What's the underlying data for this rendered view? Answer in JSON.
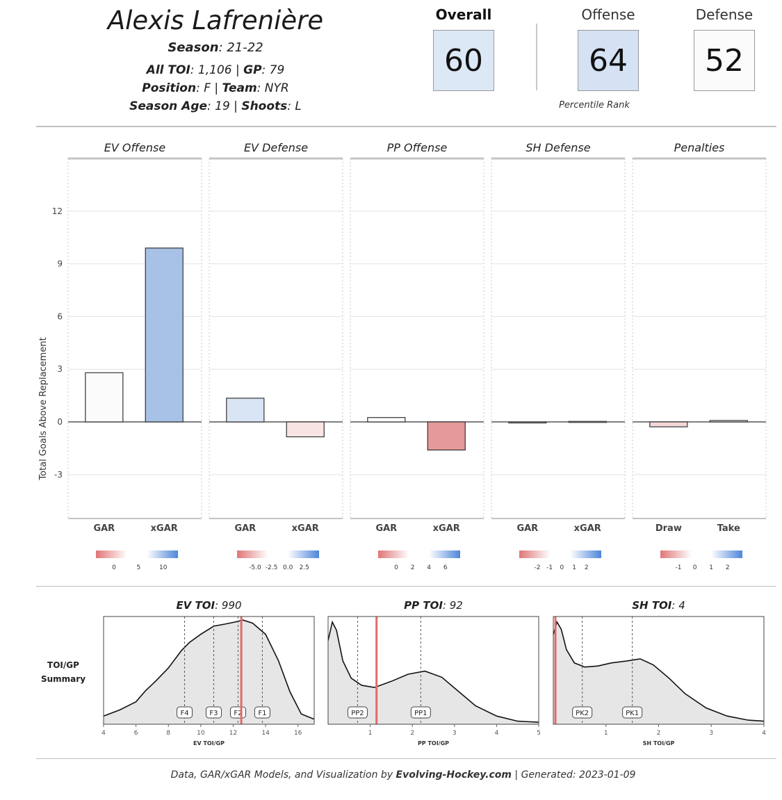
{
  "header": {
    "player_name": "Alexis Lafrenière",
    "season_label": "Season",
    "season_value": ": 21-22",
    "toi_label": "All TOI",
    "toi_value": ": 1,106 | ",
    "gp_label": "GP",
    "gp_value": ": 79",
    "position_label": "Position",
    "position_value": ": F | ",
    "team_label": "Team",
    "team_value": ": NYR",
    "age_label": "Season Age",
    "age_value": ": 19 | ",
    "shoots_label": "Shoots",
    "shoots_value": ": L"
  },
  "ranks": {
    "overall_label": "Overall",
    "overall_value": "60",
    "offense_label": "Offense",
    "offense_value": "64",
    "defense_label": "Defense",
    "defense_value": "52",
    "percentile_caption": "Percentile Rank",
    "colors": {
      "overall": "#dde8f6",
      "offense": "#d4e2f3",
      "defense": "#fbfbfb"
    }
  },
  "chart_data": [
    {
      "type": "bar",
      "ylabel": "Total Goals Above Replacement",
      "yticks": [
        12,
        9,
        6,
        3,
        0,
        -3
      ],
      "ylim": [
        -5.5,
        15
      ],
      "panels": [
        {
          "title": "EV Offense",
          "categories": [
            "GAR",
            "xGAR"
          ],
          "values": [
            2.8,
            9.9
          ],
          "colors": [
            "#fbfbfb",
            "#a8c1e6"
          ],
          "legend_ticks": [
            "0",
            "5",
            "10"
          ]
        },
        {
          "title": "EV Defense",
          "categories": [
            "GAR",
            "xGAR"
          ],
          "values": [
            1.35,
            -0.85
          ],
          "colors": [
            "#d9e4f5",
            "#f9e4e4"
          ],
          "legend_ticks": [
            "-5.0",
            "-2.5",
            "0.0",
            "2.5"
          ]
        },
        {
          "title": "PP Offense",
          "categories": [
            "GAR",
            "xGAR"
          ],
          "values": [
            0.25,
            -1.6
          ],
          "colors": [
            "#fdfdfd",
            "#e49a9a"
          ],
          "legend_ticks": [
            "0",
            "2",
            "4",
            "6"
          ]
        },
        {
          "title": "SH Defense",
          "categories": [
            "GAR",
            "xGAR"
          ],
          "values": [
            -0.03,
            0.03
          ],
          "colors": [
            "#f3f3f3",
            "#f3f3f3"
          ],
          "legend_ticks": [
            "-2",
            "-1",
            "0",
            "1",
            "2"
          ]
        },
        {
          "title": "Penalties",
          "categories": [
            "Draw",
            "Take"
          ],
          "values": [
            -0.28,
            0.08
          ],
          "colors": [
            "#f6d7d7",
            "#f3f3f3"
          ],
          "legend_ticks": [
            "-1",
            "0",
            "1",
            "2"
          ]
        }
      ]
    },
    {
      "type": "area",
      "summary_label": [
        "TOI/GP",
        "Summary"
      ],
      "panels": [
        {
          "title_label": "EV TOI",
          "title_value": ": 990",
          "xlabel": "EV TOI/GP",
          "xlim": [
            4,
            17
          ],
          "xticks": [
            "4",
            "6",
            "8",
            "10",
            "12",
            "14",
            "16"
          ],
          "xtick_values": [
            4,
            6,
            8,
            10,
            12,
            14,
            16
          ],
          "density_x": [
            4,
            5,
            6,
            6.6,
            7.2,
            8,
            8.8,
            9.3,
            10,
            10.8,
            11.5,
            12.1,
            12.6,
            13.2,
            14,
            14.8,
            15.5,
            16.2,
            17
          ],
          "density_y": [
            0.08,
            0.14,
            0.22,
            0.33,
            0.42,
            0.55,
            0.72,
            0.8,
            0.88,
            0.96,
            0.98,
            1.0,
            1.02,
            0.99,
            0.88,
            0.62,
            0.32,
            0.1,
            0.05
          ],
          "marker": 12.5,
          "lines": [
            {
              "label": "F4",
              "x": 9.0
            },
            {
              "label": "F3",
              "x": 10.8
            },
            {
              "label": "F2",
              "x": 12.3
            },
            {
              "label": "F1",
              "x": 13.8
            }
          ]
        },
        {
          "title_label": "PP TOI",
          "title_value": ": 92",
          "xlabel": "PP TOI/GP",
          "xlim": [
            0,
            5
          ],
          "xticks": [
            "1",
            "2",
            "3",
            "4",
            "5"
          ],
          "xtick_values": [
            1,
            2,
            3,
            4,
            5
          ],
          "density_x": [
            0,
            0.1,
            0.2,
            0.35,
            0.55,
            0.8,
            1.1,
            1.5,
            1.9,
            2.3,
            2.7,
            3.1,
            3.5,
            4.0,
            4.5,
            5.0
          ],
          "density_y": [
            0.82,
            1.0,
            0.92,
            0.62,
            0.45,
            0.38,
            0.36,
            0.42,
            0.49,
            0.52,
            0.46,
            0.32,
            0.18,
            0.08,
            0.03,
            0.02
          ],
          "marker": 1.15,
          "lines": [
            {
              "label": "PP2",
              "x": 0.7
            },
            {
              "label": "PP1",
              "x": 2.2
            }
          ]
        },
        {
          "title_label": "SH TOI",
          "title_value": ": 4",
          "xlabel": "SH TOI/GP",
          "xlim": [
            0,
            4
          ],
          "xticks": [
            "1",
            "2",
            "3",
            "4"
          ],
          "xtick_values": [
            1,
            2,
            3,
            4
          ],
          "density_x": [
            0,
            0.07,
            0.15,
            0.25,
            0.4,
            0.6,
            0.85,
            1.1,
            1.4,
            1.65,
            1.9,
            2.2,
            2.5,
            2.9,
            3.3,
            3.7,
            4.0
          ],
          "density_y": [
            0.88,
            1.0,
            0.93,
            0.73,
            0.6,
            0.56,
            0.57,
            0.6,
            0.62,
            0.64,
            0.58,
            0.45,
            0.3,
            0.16,
            0.08,
            0.04,
            0.03
          ],
          "marker": 0.04,
          "lines": [
            {
              "label": "PK2",
              "x": 0.55
            },
            {
              "label": "PK1",
              "x": 1.5
            }
          ]
        }
      ]
    }
  ],
  "footer": {
    "prefix": "Data, GAR/xGAR Models, and Visualization by ",
    "site": "Evolving-Hockey.com",
    "suffix": " | Generated: 2023-01-09"
  }
}
